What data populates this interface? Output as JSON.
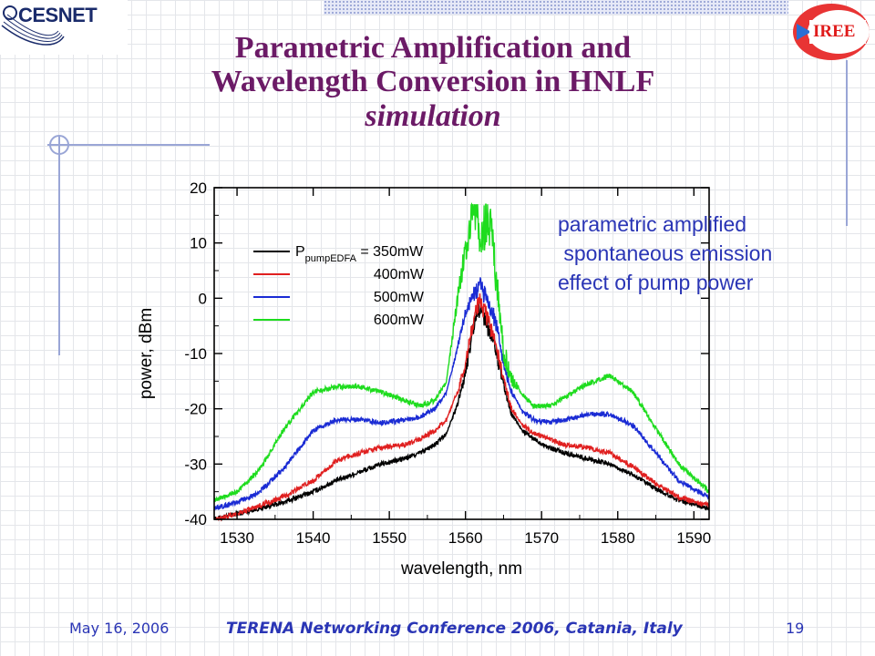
{
  "slide": {
    "title_line1": "Parametric Amplification and",
    "title_line2": "Wavelength Conversion in HNLF",
    "title_line3": "simulation",
    "logo_left": "CESNET",
    "logo_right": "IREE",
    "annotation": [
      "parametric amplified",
      " spontaneous emission",
      "effect of pump power"
    ],
    "footer_date": "May 16, 2006",
    "footer_conference": "TERENA Networking Conference 2006, Catania, Italy",
    "footer_page": "19"
  },
  "chart_data": {
    "type": "line",
    "xlabel": "wavelength, nm",
    "ylabel": "power, dBm",
    "xlim": [
      1527,
      1592
    ],
    "ylim": [
      -40,
      20
    ],
    "xticks": [
      1530,
      1540,
      1550,
      1560,
      1570,
      1580,
      1590
    ],
    "yticks": [
      20,
      10,
      0,
      -10,
      -20,
      -30,
      -40
    ],
    "grid": false,
    "legend_position": "top-left",
    "legend_prefix": "P",
    "legend_subscript": "pumpEDFA",
    "legend_prefix_suffix": " = ",
    "colors": [
      "#000000",
      "#e02020",
      "#1a2bd4",
      "#1edc1e"
    ],
    "x": [
      1527,
      1530,
      1533,
      1536,
      1540,
      1543,
      1546,
      1549,
      1552,
      1554,
      1556,
      1557.5,
      1559,
      1560,
      1561,
      1561.5,
      1562,
      1562.5,
      1563,
      1563.5,
      1564,
      1565,
      1566,
      1567.5,
      1569,
      1571,
      1573,
      1576,
      1579,
      1582,
      1585,
      1588,
      1592
    ],
    "series": [
      {
        "name": "350mW",
        "values": [
          -40,
          -39,
          -38,
          -37,
          -35,
          -33,
          -31.5,
          -30,
          -29,
          -28,
          -26.5,
          -24.5,
          -19,
          -14,
          -6,
          -3,
          -2,
          -4,
          -6,
          -7,
          -10,
          -16,
          -21,
          -24,
          -25.5,
          -27,
          -28,
          -29,
          -30,
          -32,
          -34.5,
          -36.5,
          -38
        ]
      },
      {
        "name": "400mW",
        "values": [
          -40,
          -39,
          -37.5,
          -36,
          -33,
          -29.5,
          -28,
          -27,
          -26.5,
          -25.5,
          -24,
          -22,
          -17,
          -12,
          -5,
          -2,
          -1,
          -3,
          -5,
          -6.5,
          -9,
          -15,
          -20,
          -23,
          -24.5,
          -25.5,
          -26.5,
          -27,
          -28,
          -30.5,
          -33.5,
          -36,
          -37.5
        ]
      },
      {
        "name": "500mW",
        "values": [
          -38,
          -37,
          -35,
          -31,
          -24,
          -22,
          -22,
          -22.5,
          -22,
          -21.5,
          -20,
          -17,
          -9,
          -3,
          0,
          1,
          2,
          0,
          -2,
          -3,
          -5,
          -12,
          -17,
          -20.5,
          -22,
          -22.5,
          -22,
          -21,
          -21,
          -23,
          -28,
          -33,
          -36
        ]
      },
      {
        "name": "600mW",
        "values": [
          -36.5,
          -35,
          -31,
          -24,
          -17,
          -16,
          -16,
          -17,
          -18.5,
          -19.5,
          -18.5,
          -15,
          0,
          8,
          15,
          14,
          10,
          12,
          13,
          11,
          3,
          -10,
          -15,
          -17.5,
          -19.5,
          -19.5,
          -18,
          -15.5,
          -14,
          -17,
          -23.5,
          -30,
          -35
        ]
      }
    ]
  }
}
